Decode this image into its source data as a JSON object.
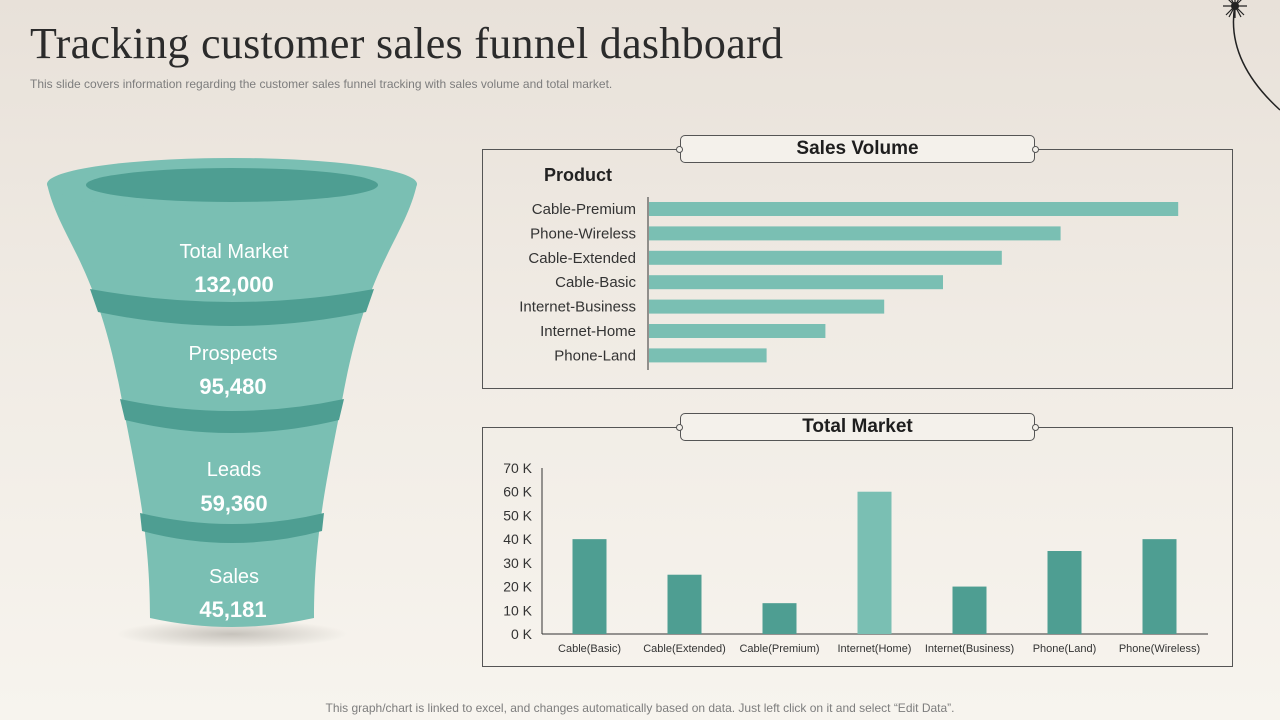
{
  "title": "Tracking customer sales funnel dashboard",
  "subtitle": "This slide covers information regarding the customer sales funnel tracking with sales volume and total market.",
  "footer": "This graph/chart is linked to excel, and changes automatically based on data. Just left click on it and select “Edit Data”.",
  "colors": {
    "teal": "#7abfb3",
    "teal_dark": "#4e9e92",
    "teal_mid": "#63ad a1"
  },
  "funnel": {
    "stages": [
      {
        "label": "Total Market",
        "value": "132,000"
      },
      {
        "label": "Prospects",
        "value": "95,480"
      },
      {
        "label": "Leads",
        "value": "59,360"
      },
      {
        "label": "Sales",
        "value": "45,181"
      }
    ]
  },
  "chart_data": [
    {
      "type": "bar",
      "orientation": "horizontal",
      "title": "Sales Volume",
      "ylabel": "Product",
      "categories": [
        "Cable-Premium",
        "Phone-Wireless",
        "Cable-Extended",
        "Cable-Basic",
        "Internet-Business",
        "Internet-Home",
        "Phone-Land"
      ],
      "values": [
        90,
        70,
        60,
        50,
        40,
        30,
        20
      ],
      "xlim": [
        0,
        100
      ],
      "grid": false,
      "color": "#7abfb3"
    },
    {
      "type": "bar",
      "title": "Total Market",
      "categories": [
        "Cable(Basic)",
        "Cable(Extended)",
        "Cable(Premium)",
        "Internet(Home)",
        "Internet(Business)",
        "Phone(Land)",
        "Phone(Wireless)"
      ],
      "values": [
        40000,
        25000,
        13000,
        60000,
        20000,
        35000,
        40000
      ],
      "ylim": [
        0,
        70000
      ],
      "yticks": [
        "0 K",
        "10 K",
        "20 K",
        "30 K",
        "40 K",
        "50 K",
        "60 K",
        "70 K"
      ],
      "grid": false,
      "colors": [
        "#4e9e92",
        "#4e9e92",
        "#4e9e92",
        "#7abfb3",
        "#4e9e92",
        "#4e9e92",
        "#4e9e92"
      ]
    }
  ]
}
